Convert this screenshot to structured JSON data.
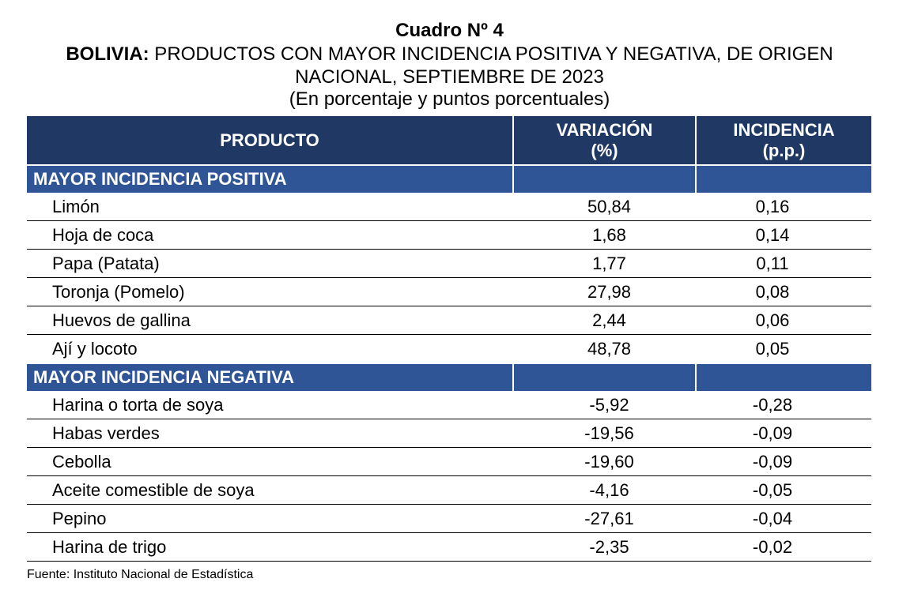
{
  "header": {
    "title": "Cuadro Nº 4",
    "subtitle_lead": "BOLIVIA:",
    "subtitle_line1": " PRODUCTOS CON MAYOR INCIDENCIA POSITIVA Y NEGATIVA, DE ORIGEN",
    "subtitle_line2": "NACIONAL, SEPTIEMBRE DE 2023",
    "units": "(En porcentaje y puntos porcentuales)"
  },
  "table": {
    "columns": {
      "product": "PRODUCTO",
      "variation_line1": "VARIACIÓN",
      "variation_line2": "(%)",
      "incidence_line1": "INCIDENCIA",
      "incidence_line2": "(p.p.)"
    },
    "positive": {
      "label": "MAYOR INCIDENCIA POSITIVA",
      "rows": [
        {
          "product": "Limón",
          "variation": "50,84",
          "incidence": "0,16"
        },
        {
          "product": "Hoja de coca",
          "variation": "1,68",
          "incidence": "0,14"
        },
        {
          "product": "Papa (Patata)",
          "variation": "1,77",
          "incidence": "0,11"
        },
        {
          "product": "Toronja (Pomelo)",
          "variation": "27,98",
          "incidence": "0,08"
        },
        {
          "product": "Huevos de gallina",
          "variation": "2,44",
          "incidence": "0,06"
        },
        {
          "product": "Ají y locoto",
          "variation": "48,78",
          "incidence": "0,05"
        }
      ]
    },
    "negative": {
      "label": "MAYOR INCIDENCIA NEGATIVA",
      "rows": [
        {
          "product": "Harina o torta de soya",
          "variation": "-5,92",
          "incidence": "-0,28"
        },
        {
          "product": "Habas verdes",
          "variation": "-19,56",
          "incidence": "-0,09"
        },
        {
          "product": "Cebolla",
          "variation": "-19,60",
          "incidence": "-0,09"
        },
        {
          "product": "Aceite comestible de soya",
          "variation": "-4,16",
          "incidence": "-0,05"
        },
        {
          "product": "Pepino",
          "variation": "-27,61",
          "incidence": "-0,04"
        },
        {
          "product": "Harina de trigo",
          "variation": "-2,35",
          "incidence": "-0,02"
        }
      ]
    }
  },
  "footer": {
    "source": "Fuente: Instituto Nacional de Estadística"
  },
  "colors": {
    "header_bg": "#1f3864",
    "section_bg": "#2f5597",
    "header_text": "#ffffff",
    "rule": "#000000"
  }
}
